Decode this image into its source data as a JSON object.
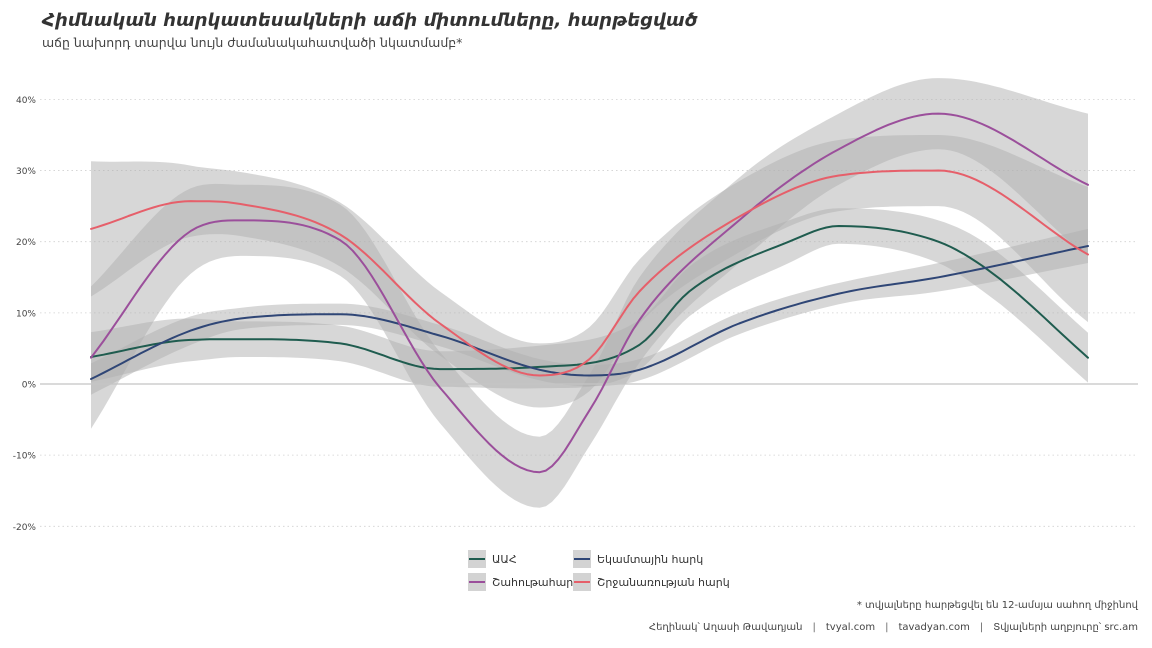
{
  "title": "Հիմնական հարկատեսակների աճի միտումները, հարթեցված",
  "subtitle": "աճը նախորդ տարվա նույն ժամանակահատվածի նկատմամբ*",
  "footnote": "* տվյալները հարթեցվել են 12-ամսյա սահող միջինով",
  "credits": {
    "author": "Հեղինակ՝ Աղասի Թավադյան",
    "site1": "tvyal.com",
    "site2": "tavadyan.com",
    "source": "Տվյալների աղբյուրը՝ src.am",
    "separator": "|"
  },
  "chart_data": {
    "type": "line",
    "x_range": [
      0,
      1
    ],
    "ylim": [
      -20,
      40
    ],
    "yticks": [
      -20,
      -10,
      0,
      10,
      20,
      30,
      40
    ],
    "ytick_labels": [
      "-20%",
      "-10%",
      "0%",
      "10%",
      "20%",
      "30%",
      "40%"
    ],
    "grid": true,
    "x_axis_labels": "none",
    "legend_position": "bottom",
    "band_color": "#b0b0b0",
    "series": [
      {
        "name": "ԱԱՀ",
        "color": "#1f5c4f",
        "x": [
          0,
          0.1,
          0.15,
          0.25,
          0.35,
          0.45,
          0.55,
          0.6,
          0.7,
          0.75,
          0.85,
          0.9,
          1
        ],
        "y": [
          3.8,
          6.2,
          6.3,
          5.7,
          2.1,
          2.4,
          5.5,
          13,
          20,
          22.2,
          20,
          16,
          3.7
        ],
        "band": [
          3.5,
          3,
          2.5,
          2.5,
          2.5,
          3,
          3.5,
          3.5,
          3,
          2.5,
          3,
          3.5,
          3.5
        ]
      },
      {
        "name": "Եկամտային հարկ",
        "color": "#2f4676",
        "x": [
          0,
          0.1,
          0.15,
          0.25,
          0.35,
          0.45,
          0.5,
          0.55,
          0.65,
          0.75,
          0.85,
          1
        ],
        "y": [
          0.7,
          7.5,
          9.2,
          9.8,
          6.8,
          2,
          1.2,
          2,
          8.5,
          12.7,
          15,
          19.4
        ],
        "band": [
          2.2,
          2,
          1.5,
          1.5,
          1.5,
          1.5,
          1.5,
          1.5,
          1.5,
          1.5,
          2,
          2.4
        ]
      },
      {
        "name": "Շահութահարկ",
        "color": "#9b4f9b",
        "x": [
          0,
          0.1,
          0.15,
          0.25,
          0.35,
          0.45,
          0.5,
          0.55,
          0.65,
          0.75,
          0.85,
          1
        ],
        "y": [
          3.7,
          21.5,
          23,
          20.2,
          -0.5,
          -12.4,
          -3.7,
          9,
          23,
          33,
          38,
          28
        ],
        "band": [
          10,
          6,
          5,
          5,
          5,
          5,
          5,
          6,
          6,
          5,
          5,
          10
        ]
      },
      {
        "name": "Շրջանառության հարկ",
        "color": "#e65f6a",
        "x": [
          0,
          0.1,
          0.15,
          0.25,
          0.35,
          0.45,
          0.5,
          0.55,
          0.65,
          0.75,
          0.85,
          1
        ],
        "y": [
          21.8,
          25.7,
          25.3,
          21,
          8.5,
          1.2,
          3.5,
          13,
          23.5,
          29.3,
          30,
          18.2
        ],
        "band": [
          9.5,
          5,
          4.5,
          4.5,
          4.5,
          4.5,
          4.5,
          4.5,
          5,
          5,
          5,
          9.5
        ]
      }
    ]
  }
}
